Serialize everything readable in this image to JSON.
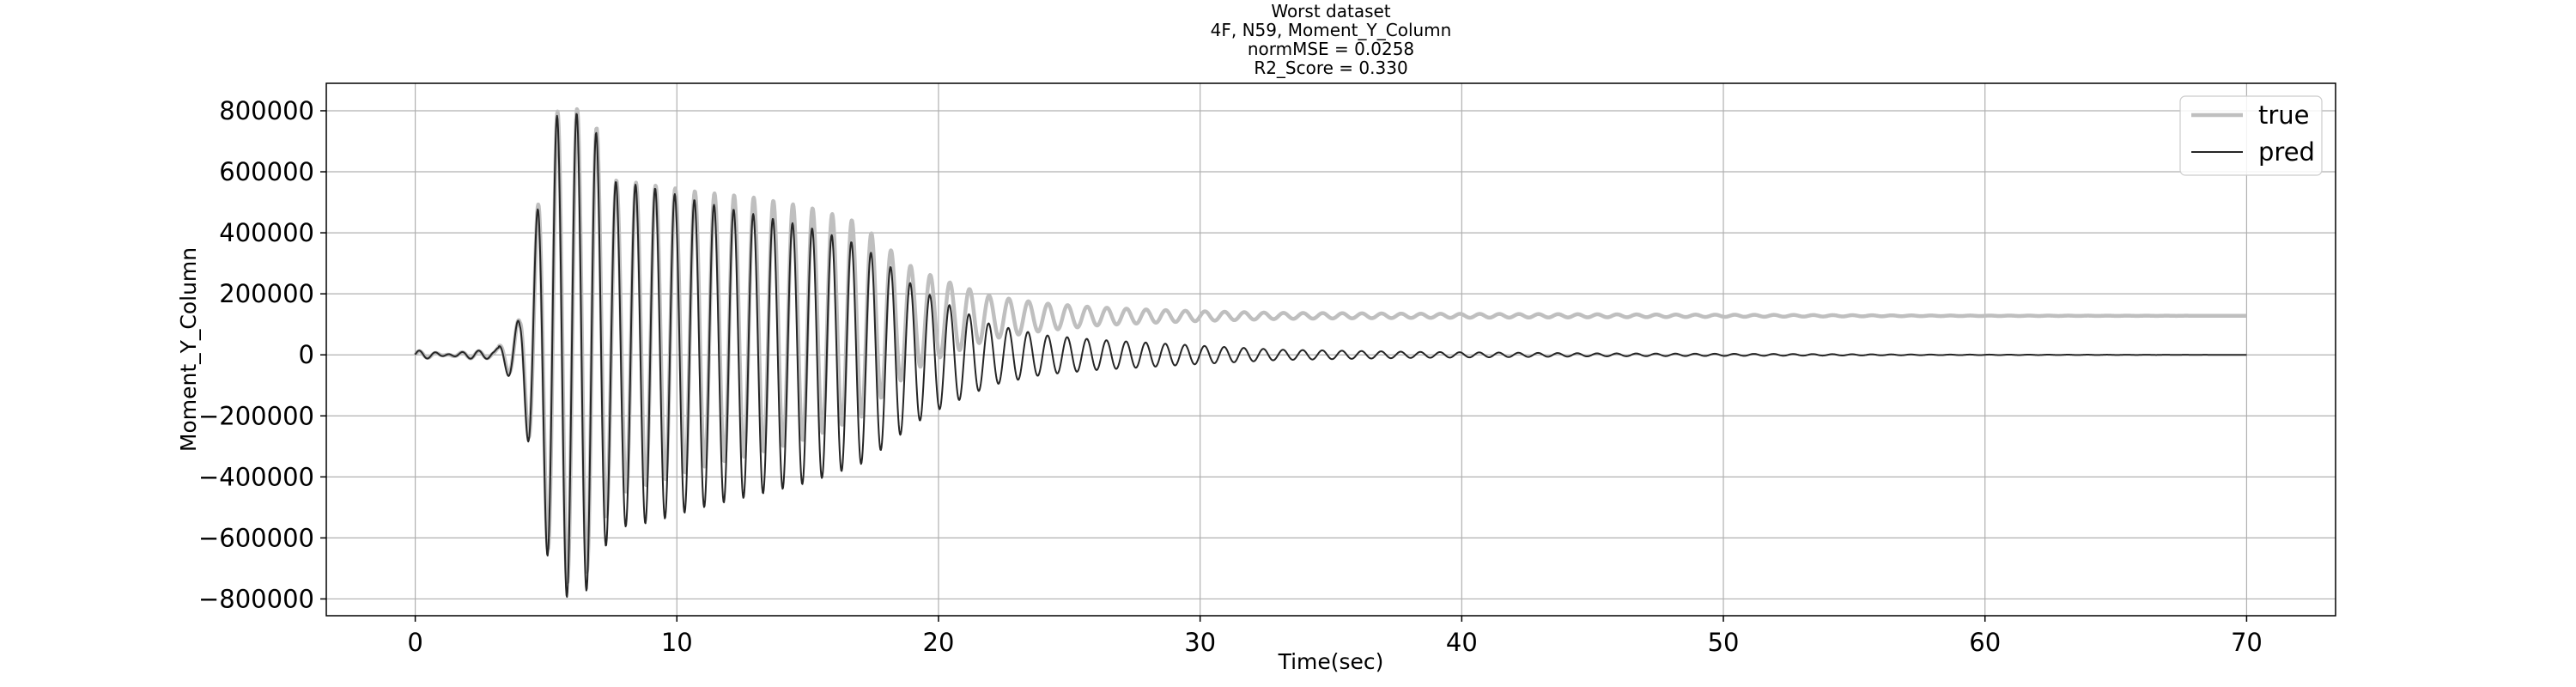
{
  "chart_data": {
    "type": "line",
    "title_lines": [
      "Worst dataset",
      "4F, N59, Moment_Y_Column",
      "normMSE = 0.0258",
      "R2_Score = 0.330"
    ],
    "xlabel": "Time(sec)",
    "ylabel": "Moment_Y_Column",
    "xlim": [
      -3.4,
      73.4
    ],
    "ylim": [
      -855000,
      890000
    ],
    "xticks": [
      0,
      10,
      20,
      30,
      40,
      50,
      60,
      70
    ],
    "xtick_labels": [
      "0",
      "10",
      "20",
      "30",
      "40",
      "50",
      "60",
      "70"
    ],
    "yticks": [
      -800000,
      -600000,
      -400000,
      -200000,
      0,
      200000,
      400000,
      600000,
      800000
    ],
    "ytick_labels": [
      "−800000",
      "−600000",
      "−400000",
      "−200000",
      "0",
      "200000",
      "400000",
      "600000",
      "800000"
    ],
    "grid": true,
    "legend_position": "top-right",
    "series": [
      {
        "name": "true",
        "color": "#bfbfbf",
        "envelope": [
          [
            0,
            20000
          ],
          [
            3,
            20000
          ],
          [
            4,
            120000
          ],
          [
            4.6,
            450000
          ],
          [
            5.3,
            780000
          ],
          [
            6.0,
            790000
          ],
          [
            6.8,
            740000
          ],
          [
            7.5,
            570000
          ],
          [
            9,
            520000
          ],
          [
            11,
            480000
          ],
          [
            13,
            450000
          ],
          [
            15,
            420000
          ],
          [
            17,
            390000
          ],
          [
            18,
            330000
          ],
          [
            19,
            260000
          ],
          [
            20,
            240000
          ],
          [
            22,
            180000
          ],
          [
            24,
            160000
          ],
          [
            26,
            150000
          ],
          [
            28,
            145000
          ],
          [
            30,
            140000
          ],
          [
            33,
            135000
          ],
          [
            38,
            132000
          ],
          [
            45,
            130000
          ],
          [
            52,
            129000
          ],
          [
            70,
            128000
          ]
        ],
        "baseline": [
          [
            0,
            0
          ],
          [
            3,
            0
          ],
          [
            5,
            20000
          ],
          [
            8,
            60000
          ],
          [
            12,
            90000
          ],
          [
            16,
            110000
          ],
          [
            20,
            120000
          ],
          [
            26,
            126000
          ],
          [
            35,
            128000
          ],
          [
            70,
            128000
          ]
        ],
        "decay_amp": [
          [
            0,
            6000
          ],
          [
            3,
            6000
          ],
          [
            4,
            110000
          ],
          [
            4.6,
            430000
          ],
          [
            5.3,
            770000
          ],
          [
            6.0,
            780000
          ],
          [
            6.8,
            740000
          ],
          [
            7.5,
            520000
          ],
          [
            9,
            490000
          ],
          [
            11,
            450000
          ],
          [
            13,
            420000
          ],
          [
            15,
            380000
          ],
          [
            17,
            320000
          ],
          [
            18,
            240000
          ],
          [
            19,
            170000
          ],
          [
            20,
            130000
          ],
          [
            22,
            70000
          ],
          [
            24,
            45000
          ],
          [
            26,
            30000
          ],
          [
            28,
            22000
          ],
          [
            30,
            16000
          ],
          [
            33,
            10000
          ],
          [
            38,
            7000
          ],
          [
            45,
            5000
          ],
          [
            52,
            3000
          ],
          [
            58,
            1000
          ],
          [
            70,
            0
          ]
        ]
      },
      {
        "name": "pred",
        "color": "#262626",
        "baseline": [
          [
            0,
            0
          ],
          [
            70,
            0
          ]
        ],
        "decay_amp": [
          [
            0,
            6000
          ],
          [
            3,
            6000
          ],
          [
            4,
            120000
          ],
          [
            4.6,
            440000
          ],
          [
            5.3,
            780000
          ],
          [
            6.0,
            800000
          ],
          [
            6.8,
            760000
          ],
          [
            7.5,
            570000
          ],
          [
            9,
            550000
          ],
          [
            11,
            500000
          ],
          [
            13,
            460000
          ],
          [
            15,
            420000
          ],
          [
            17,
            360000
          ],
          [
            18,
            300000
          ],
          [
            19,
            230000
          ],
          [
            20,
            180000
          ],
          [
            22,
            100000
          ],
          [
            24,
            65000
          ],
          [
            26,
            50000
          ],
          [
            28,
            40000
          ],
          [
            30,
            30000
          ],
          [
            33,
            17000
          ],
          [
            38,
            10000
          ],
          [
            45,
            5000
          ],
          [
            52,
            3000
          ],
          [
            58,
            1000
          ],
          [
            70,
            0
          ]
        ]
      }
    ],
    "oscillation_period_sec": 0.75,
    "x_end": 70
  }
}
